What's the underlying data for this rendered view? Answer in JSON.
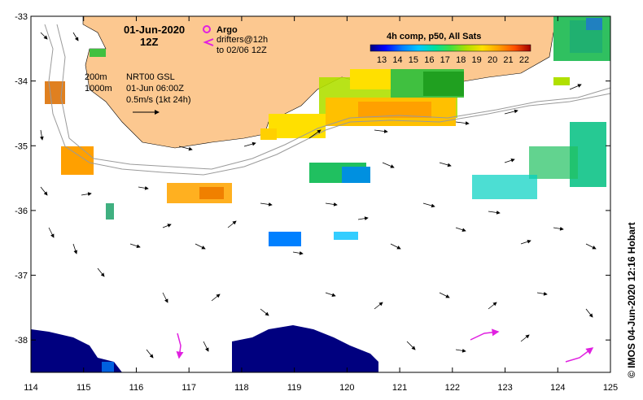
{
  "map": {
    "date": "01-Jun-2020",
    "time": "12Z",
    "legend": {
      "argo_label": "Argo",
      "drifters_label": "drifters@12h",
      "drifters_to": "to 02/06 12Z",
      "argo_color": "#e020e0",
      "drifter_color": "#e020e0"
    },
    "colorbar": {
      "title": "4h comp, p50, All Sats",
      "ticks": [
        "13",
        "14",
        "15",
        "16",
        "17",
        "18",
        "19",
        "20",
        "21",
        "22"
      ],
      "colors": [
        "#00007f",
        "#0000ff",
        "#0080ff",
        "#00c0ff",
        "#00e0a0",
        "#40e040",
        "#a0e000",
        "#ffe000",
        "#ffa000",
        "#ff6000",
        "#e00000",
        "#a00000"
      ]
    },
    "info": {
      "depth_200": "200m",
      "depth_1000": "1000m",
      "source": "NRT00 GSL",
      "analysis_time": "01-Jun 06:00Z",
      "vector_scale": "0.5m/s (1kt 24h)"
    },
    "axes": {
      "x_ticks": [
        "114",
        "115",
        "116",
        "117",
        "118",
        "119",
        "120",
        "121",
        "122",
        "123",
        "124",
        "125"
      ],
      "y_ticks": [
        "-33",
        "-34",
        "-35",
        "-36",
        "-37",
        "-38"
      ],
      "x_range": [
        114,
        125
      ],
      "y_range": [
        -38.5,
        -33
      ]
    },
    "credit": "© IMOS 04-Jun-2020 12:16 Hobart",
    "land_color": "#fcc890",
    "cold_sst_color": "#00007f"
  }
}
